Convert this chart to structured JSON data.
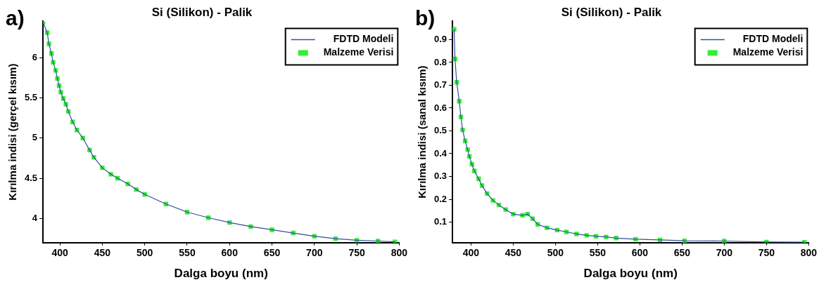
{
  "chart_data": [
    {
      "type": "line",
      "title": "Si (Silikon) - Palik",
      "xlabel": "Dalga boyu (nm)",
      "ylabel": "Kırılma indisi (gerçel kısım)",
      "annotations": [
        "a)"
      ],
      "legend": "top right",
      "x": [
        380,
        385,
        387,
        390,
        392,
        395,
        397,
        399,
        401,
        404,
        407,
        410,
        415,
        420,
        427,
        435,
        440,
        450,
        460,
        468,
        480,
        490,
        500,
        525,
        550,
        575,
        600,
        625,
        650,
        675,
        700,
        725,
        750,
        775,
        795
      ],
      "xlim": [
        380,
        800
      ],
      "xticks": [
        400,
        450,
        500,
        550,
        600,
        650,
        700,
        750,
        800
      ],
      "ylim": [
        3.7,
        6.45
      ],
      "yticks": [
        4,
        4.5,
        5,
        5.5,
        6
      ],
      "series": [
        {
          "name": "FDTD Modeli",
          "type": "line",
          "color": "#2f4f9f",
          "values": [
            6.44,
            6.31,
            6.17,
            6.05,
            5.94,
            5.84,
            5.74,
            5.65,
            5.57,
            5.49,
            5.42,
            5.33,
            5.2,
            5.1,
            5.0,
            4.85,
            4.76,
            4.63,
            4.55,
            4.5,
            4.43,
            4.36,
            4.3,
            4.18,
            4.08,
            4.01,
            3.95,
            3.9,
            3.86,
            3.82,
            3.78,
            3.75,
            3.73,
            3.72,
            3.71
          ]
        },
        {
          "name": "Malzeme Verisi",
          "type": "scatter",
          "marker": "square",
          "color": "#33ee33",
          "values": [
            6.44,
            6.31,
            6.17,
            6.05,
            5.94,
            5.84,
            5.74,
            5.65,
            5.57,
            5.49,
            5.42,
            5.33,
            5.2,
            5.1,
            5.0,
            4.85,
            4.76,
            4.63,
            4.55,
            4.5,
            4.43,
            4.36,
            4.3,
            4.18,
            4.08,
            4.01,
            3.95,
            3.9,
            3.86,
            3.82,
            3.78,
            3.75,
            3.73,
            3.72,
            3.71
          ]
        }
      ]
    },
    {
      "type": "line",
      "title": "Si (Silikon) - Palik",
      "xlabel": "Dalga boyu (nm)",
      "ylabel": "Kırılma indisi (sanal kısım)",
      "annotations": [
        "b)"
      ],
      "legend": "top right",
      "x": [
        380,
        381,
        383,
        386,
        388,
        390,
        393,
        396,
        398,
        401,
        404,
        409,
        413,
        419,
        426,
        433,
        441,
        450,
        461,
        467,
        473,
        479,
        490,
        502,
        513,
        525,
        537,
        548,
        560,
        572,
        595,
        624,
        653,
        700,
        750,
        795
      ],
      "xlim": [
        378,
        800
      ],
      "xticks": [
        400,
        450,
        500,
        550,
        600,
        650,
        700,
        750,
        800
      ],
      "ylim": [
        0.01,
        0.98
      ],
      "yticks": [
        0.1,
        0.2,
        0.3,
        0.4,
        0.5,
        0.6,
        0.7,
        0.8,
        0.9
      ],
      "series": [
        {
          "name": "FDTD Modeli",
          "type": "line",
          "color": "#2f4f9f",
          "values": [
            0.945,
            0.815,
            0.713,
            0.63,
            0.561,
            0.504,
            0.456,
            0.418,
            0.388,
            0.354,
            0.324,
            0.29,
            0.26,
            0.225,
            0.195,
            0.175,
            0.155,
            0.135,
            0.13,
            0.135,
            0.115,
            0.09,
            0.075,
            0.065,
            0.057,
            0.048,
            0.042,
            0.038,
            0.035,
            0.03,
            0.025,
            0.022,
            0.018,
            0.017,
            0.013,
            0.012
          ]
        },
        {
          "name": "Malzeme Verisi",
          "type": "scatter",
          "marker": "square",
          "color": "#33ee33",
          "values": [
            0.945,
            0.815,
            0.713,
            0.63,
            0.561,
            0.504,
            0.456,
            0.418,
            0.388,
            0.354,
            0.324,
            0.29,
            0.26,
            0.225,
            0.195,
            0.175,
            0.155,
            0.135,
            0.13,
            0.135,
            0.115,
            0.09,
            0.075,
            0.065,
            0.057,
            0.048,
            0.042,
            0.038,
            0.035,
            0.03,
            0.025,
            0.022,
            0.018,
            0.017,
            0.013,
            0.012
          ]
        }
      ]
    }
  ]
}
